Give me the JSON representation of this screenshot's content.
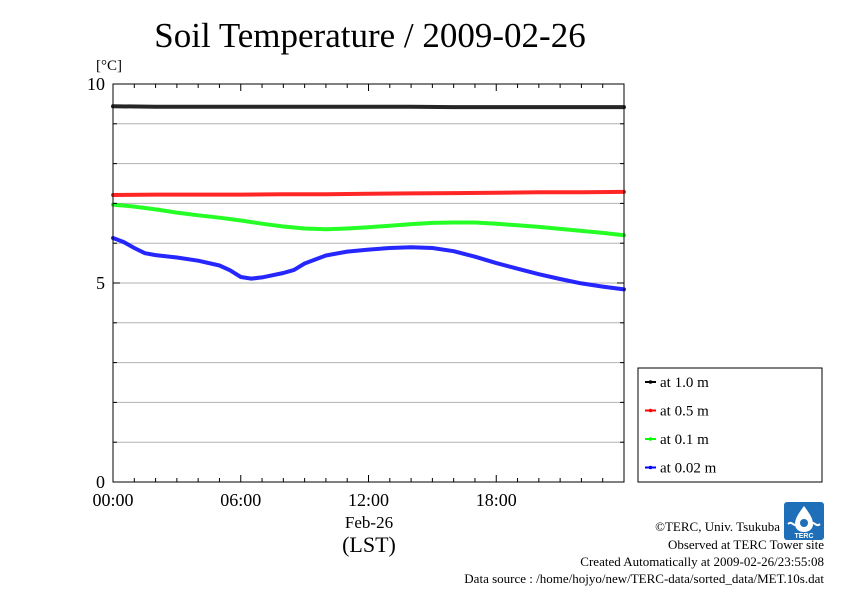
{
  "chart_data": {
    "type": "line",
    "title": "Soil Temperature / 2009-02-26",
    "ylabel": "[°C]",
    "ylim": [
      0,
      10
    ],
    "y_ticks": [
      "0",
      "5",
      "10"
    ],
    "xlim": [
      "00:00",
      "24:00"
    ],
    "x_ticks": [
      "00:00",
      "06:00",
      "12:00",
      "18:00"
    ],
    "x_date_label": "Feb-26",
    "x_timezone_label": "(LST)",
    "grid": true,
    "legend_position": "bottom-right, outside plot",
    "series": [
      {
        "name": "at 1.0 m",
        "color": "#000000",
        "x": [
          0,
          2,
          4,
          6,
          8,
          10,
          12,
          14,
          16,
          18,
          20,
          22,
          24
        ],
        "y": [
          9.44,
          9.43,
          9.43,
          9.43,
          9.43,
          9.43,
          9.43,
          9.43,
          9.42,
          9.42,
          9.42,
          9.42,
          9.42
        ]
      },
      {
        "name": "at 0.5 m",
        "color": "#ff0000",
        "x": [
          0,
          2,
          4,
          6,
          8,
          10,
          12,
          14,
          16,
          18,
          20,
          22,
          24
        ],
        "y": [
          7.21,
          7.22,
          7.22,
          7.22,
          7.23,
          7.23,
          7.24,
          7.25,
          7.26,
          7.27,
          7.28,
          7.28,
          7.29
        ]
      },
      {
        "name": "at 0.1 m",
        "color": "#00ff00",
        "x": [
          0,
          1,
          2,
          3,
          4,
          5,
          6,
          7,
          8,
          9,
          10,
          11,
          12,
          13,
          14,
          15,
          16,
          17,
          18,
          19,
          20,
          21,
          22,
          23,
          24
        ],
        "y": [
          6.97,
          6.92,
          6.85,
          6.77,
          6.7,
          6.64,
          6.57,
          6.49,
          6.42,
          6.37,
          6.35,
          6.37,
          6.4,
          6.44,
          6.48,
          6.51,
          6.52,
          6.52,
          6.49,
          6.45,
          6.41,
          6.36,
          6.31,
          6.26,
          6.2
        ]
      },
      {
        "name": "at 0.02 m",
        "color": "#0000ff",
        "x": [
          0,
          0.5,
          1,
          1.5,
          2,
          3,
          4,
          5,
          5.5,
          6,
          6.5,
          7,
          8,
          8.5,
          9,
          10,
          11,
          12,
          13,
          14,
          15,
          16,
          17,
          18,
          19,
          20,
          21,
          22,
          23,
          24
        ],
        "y": [
          6.13,
          6.03,
          5.88,
          5.75,
          5.7,
          5.64,
          5.56,
          5.44,
          5.32,
          5.15,
          5.11,
          5.14,
          5.25,
          5.33,
          5.49,
          5.69,
          5.79,
          5.84,
          5.88,
          5.9,
          5.88,
          5.8,
          5.66,
          5.5,
          5.36,
          5.22,
          5.1,
          4.99,
          4.91,
          4.84
        ]
      }
    ]
  },
  "footer": {
    "copyright": "©TERC, Univ. Tsukuba",
    "observed": "Observed at TERC Tower site",
    "created": "Created Automatically at 2009-02-26/23:55:08",
    "source": "Data source : /home/hojyo/new/TERC-data/sorted_data/MET.10s.dat"
  },
  "logo": {
    "name": "terc-logo-icon",
    "text": "TERC",
    "color": "#1e6fb8"
  }
}
